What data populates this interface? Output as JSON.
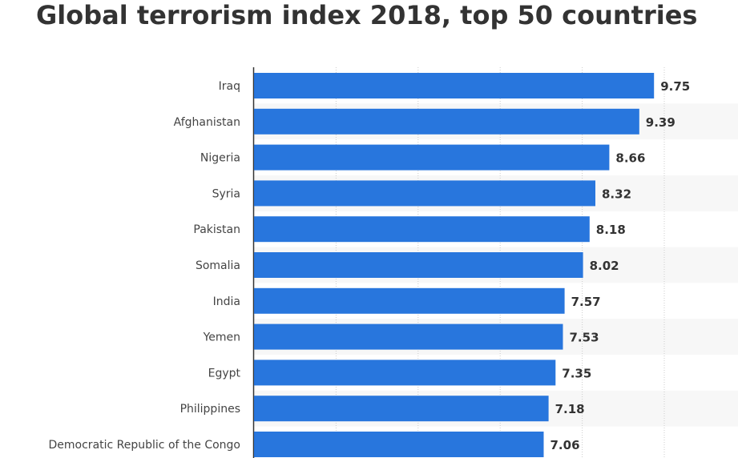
{
  "chart_data": {
    "type": "bar",
    "orientation": "horizontal",
    "title": "Global terrorism index 2018, top 50 countries",
    "categories": [
      "Iraq",
      "Afghanistan",
      "Nigeria",
      "Syria",
      "Pakistan",
      "Somalia",
      "India",
      "Yemen",
      "Egypt",
      "Philippines",
      "Democratic Republic of the Congo"
    ],
    "values": [
      9.75,
      9.39,
      8.66,
      8.32,
      8.18,
      8.02,
      7.57,
      7.53,
      7.35,
      7.18,
      7.06
    ],
    "value_labels": [
      "9.75",
      "9.39",
      "8.66",
      "8.32",
      "8.18",
      "8.02",
      "7.57",
      "7.53",
      "7.35",
      "7.18",
      "7.06"
    ],
    "xlabel": "",
    "ylabel": "",
    "xlim": [
      0,
      11.8
    ],
    "grid": true,
    "bar_color": "#2876dd"
  }
}
